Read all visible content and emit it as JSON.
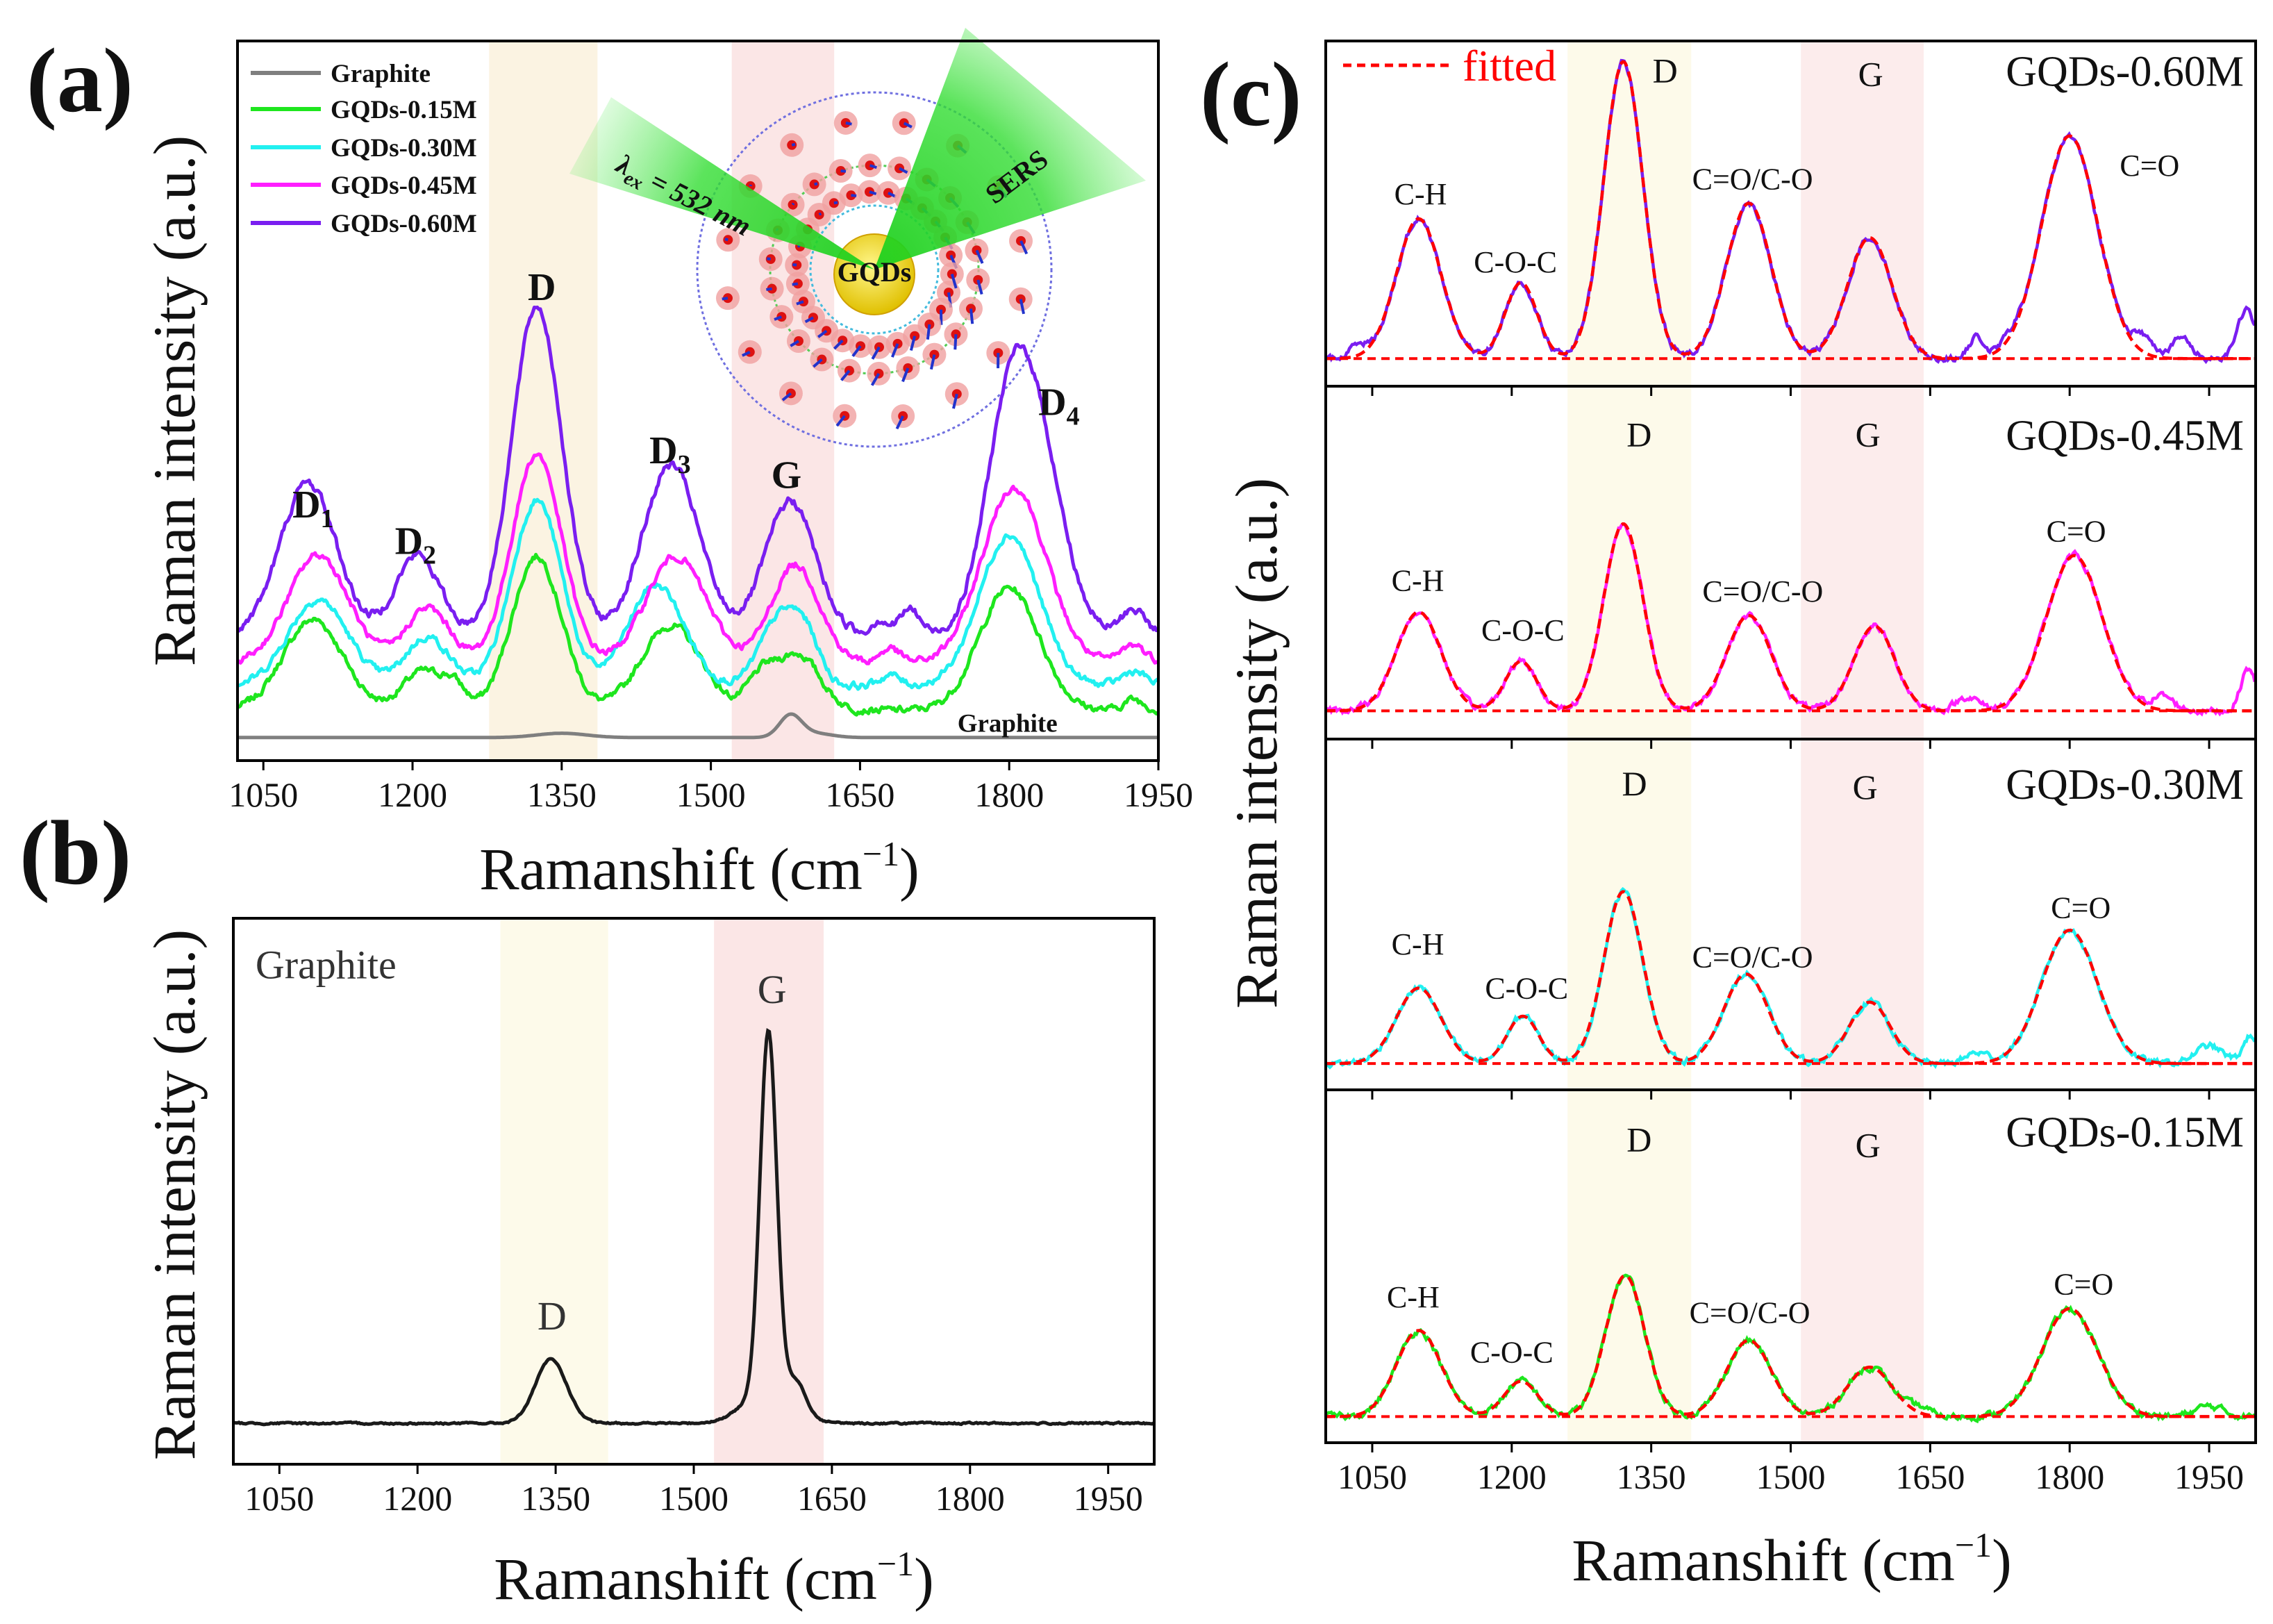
{
  "figure": {
    "panel_labels": {
      "a": "(a)",
      "b": "(b)",
      "c": "(c)"
    },
    "ylabel": "Raman intensity (a.u.)",
    "xlabel_main": "Ramanshift (cm",
    "xlabel_sup": "−1",
    "xlabel_end": ")"
  },
  "inset": {
    "lambda_symbol": "λ",
    "lambda_sub": "ex",
    "lambda_value": " = 532 nm",
    "sers": "SERS",
    "core": "GQDs"
  },
  "colors": {
    "graphite": "#7f7f7f",
    "gqds_015": "#1ee61e",
    "gqds_030": "#22f0f0",
    "gqds_045": "#ff1eff",
    "gqds_060": "#7a1ef0",
    "fit": "#ff0000",
    "d_band": "#fbf3e2",
    "g_band": "#fbe6e6",
    "d_band_c": "#fdfaea",
    "g_band_c": "#fcecec"
  },
  "chart_data": [
    {
      "id": "a",
      "type": "line",
      "title": "",
      "xlabel": "Ramanshift (cm−1)",
      "ylabel": "Raman intensity (a.u.)",
      "xlim": [
        1024,
        1950
      ],
      "ylim": [
        0,
        100
      ],
      "xticks": [
        1050,
        1200,
        1350,
        1500,
        1650,
        1800,
        1950
      ],
      "grid": false,
      "legend_position": "top-left",
      "bands": [
        {
          "label": "D",
          "range": [
            1277,
            1386
          ],
          "color_key": "d_band"
        },
        {
          "label": "G",
          "range": [
            1521,
            1624
          ],
          "color_key": "g_band"
        }
      ],
      "series": [
        {
          "name": "Graphite",
          "color_key": "graphite",
          "baseline": 3.2,
          "noise": 0,
          "peaks": [
            [
              1350,
              0.6,
              25
            ],
            [
              1580,
              3.0,
              11
            ],
            [
              1603,
              0.6,
              18
            ]
          ]
        },
        {
          "name": "GQDs-0.15M",
          "color_key": "gqds_015",
          "baseline": 7,
          "noise": 0.5,
          "peaks": [
            [
              1100,
              12.6,
              30
            ],
            [
              1210,
              5.4,
              20
            ],
            [
              1242,
              3,
              12
            ],
            [
              1325,
              21.4,
              25
            ],
            [
              1460,
              11.8,
              30
            ],
            [
              1550,
              4,
              14
            ],
            [
              1587,
              7.8,
              22
            ],
            [
              1800,
              17,
              30
            ],
            [
              1925,
              1.5,
              10
            ]
          ]
        },
        {
          "name": "GQDs-0.30M",
          "color_key": "gqds_030",
          "baseline": 10.4,
          "noise": 0.5,
          "peaks": [
            [
              1105,
              12,
              30
            ],
            [
              1215,
              6.8,
              22
            ],
            [
              1325,
              25.8,
              25
            ],
            [
              1445,
              14,
              28
            ],
            [
              1570,
              9.6,
              20
            ],
            [
              1597,
              5,
              14
            ],
            [
              1680,
              1.5,
              10
            ],
            [
              1800,
              21,
              30
            ],
            [
              1925,
              2,
              12
            ]
          ]
        },
        {
          "name": "GQDs-0.45M",
          "color_key": "gqds_045",
          "baseline": 13.6,
          "noise": 0.5,
          "peaks": [
            [
              1105,
              15,
              30
            ],
            [
              1215,
              7.6,
              22
            ],
            [
              1325,
              29,
              25
            ],
            [
              1465,
              14.8,
              30
            ],
            [
              1585,
              13.6,
              24
            ],
            [
              1680,
              2,
              10
            ],
            [
              1805,
              24.4,
              32
            ],
            [
              1925,
              2.5,
              12
            ]
          ]
        },
        {
          "name": "GQDs-0.60M",
          "color_key": "gqds_060",
          "baseline": 17.6,
          "noise": 0.6,
          "peaks": [
            [
              1095,
              21,
              28
            ],
            [
              1205,
              11,
              22
            ],
            [
              1325,
              45.5,
              25
            ],
            [
              1460,
              23.5,
              28
            ],
            [
              1580,
              18.5,
              25
            ],
            [
              1670,
              2,
              8
            ],
            [
              1700,
              3.5,
              10
            ],
            [
              1800,
              28,
              25
            ],
            [
              1832,
              20,
              26
            ],
            [
              1925,
              3.5,
              12
            ]
          ]
        }
      ],
      "annotations": [
        {
          "text": "D",
          "sub": "1",
          "x": 1100,
          "y": 33.8
        },
        {
          "text": "D",
          "sub": "2",
          "x": 1203,
          "y": 28.7
        },
        {
          "text": "D",
          "sub": "",
          "x": 1330,
          "y": 64
        },
        {
          "text": "D",
          "sub": "3",
          "x": 1459,
          "y": 41.3
        },
        {
          "text": "G",
          "sub": "",
          "x": 1576,
          "y": 37.9
        },
        {
          "text": "D",
          "sub": "4",
          "x": 1850,
          "y": 48
        }
      ],
      "series_label": {
        "text": "Graphite",
        "x": 1748,
        "y": 4
      }
    },
    {
      "id": "b",
      "type": "line",
      "title": "Graphite",
      "xlabel": "Ramanshift (cm−1)",
      "ylabel": "Raman intensity (a.u.)",
      "xlim": [
        1000,
        2000
      ],
      "ylim": [
        0,
        100
      ],
      "xticks": [
        1050,
        1200,
        1350,
        1500,
        1650,
        1800,
        1950
      ],
      "grid": false,
      "bands": [
        {
          "label": "D",
          "range": [
            1290,
            1407
          ],
          "color_key": "d_band_c"
        },
        {
          "label": "G",
          "range": [
            1522,
            1641
          ],
          "color_key": "g_band"
        }
      ],
      "series": [
        {
          "name": "Graphite",
          "color": "#1a1a1a",
          "baseline": 7.5,
          "noise": 0.15,
          "peaks": [
            [
              1345,
              11.7,
              17
            ],
            [
              1581,
              66,
              9
            ],
            [
              1581,
              6,
              26
            ],
            [
              1612,
              5,
              10
            ]
          ]
        }
      ],
      "annotations": [
        {
          "text": "Graphite",
          "sub": "",
          "x": 1024,
          "y": 89,
          "anchor": "start"
        },
        {
          "text": "D",
          "sub": "",
          "x": 1346,
          "y": 24.7
        },
        {
          "text": "G",
          "sub": "",
          "x": 1585,
          "y": 84.5
        }
      ]
    },
    {
      "id": "c",
      "type": "line",
      "xlabel": "Ramanshift (cm−1)",
      "ylabel": "Raman intensity (a.u.)",
      "xlim": [
        1000,
        2000
      ],
      "ylim": [
        0,
        100
      ],
      "xticks": [
        1050,
        1200,
        1350,
        1500,
        1650,
        1800,
        1950
      ],
      "grid": false,
      "legend": {
        "label": "fitted",
        "position": "top-left"
      },
      "bands": [
        {
          "label": "D",
          "range": [
            1260,
            1393
          ],
          "color_key": "d_band_c"
        },
        {
          "label": "G",
          "range": [
            1511,
            1643
          ],
          "color_key": "g_band_c"
        }
      ],
      "subpanels": [
        {
          "name": "GQDs-0.60M",
          "color_key": "gqds_060",
          "baseline": 8,
          "peaks": [
            [
              1100,
              40.5,
              24
            ],
            [
              1210,
              22,
              17
            ],
            [
              1320,
              86,
              21
            ],
            [
              1455,
              45,
              24
            ],
            [
              1585,
              35,
              24
            ],
            [
              1800,
              64.5,
              30
            ]
          ],
          "extras": [
            [
              1035,
              4,
              8
            ],
            [
              1700,
              6,
              8
            ],
            [
              1735,
              2,
              10
            ],
            [
              1880,
              5,
              12
            ],
            [
              1920,
              6,
              10
            ],
            [
              1990,
              14,
              10
            ]
          ],
          "annotations": [
            {
              "text": "D",
              "x": 1365,
              "y": 88
            },
            {
              "text": "G",
              "x": 1586,
              "y": 87
            },
            {
              "text": "C-H",
              "x": 1102,
              "y": 52.7
            },
            {
              "text": "C-O-C",
              "x": 1204,
              "y": 33
            },
            {
              "text": "C=O/C-O",
              "x": 1459,
              "y": 57
            },
            {
              "text": "C=O",
              "x": 1886,
              "y": 61
            }
          ],
          "name_y": 87
        },
        {
          "name": "GQDs-0.45M",
          "color_key": "gqds_045",
          "baseline": 8,
          "peaks": [
            [
              1100,
              28,
              24
            ],
            [
              1210,
              14,
              17
            ],
            [
              1320,
              53,
              21
            ],
            [
              1455,
              27,
              24
            ],
            [
              1590,
              24,
              22
            ],
            [
              1805,
              44,
              30
            ]
          ],
          "extras": [
            [
              1690,
              4,
              12
            ],
            [
              1900,
              4,
              12
            ],
            [
              1992,
              12,
              8
            ]
          ],
          "annotations": [
            {
              "text": "D",
              "x": 1337,
              "y": 83
            },
            {
              "text": "G",
              "x": 1583,
              "y": 83
            },
            {
              "text": "C-H",
              "x": 1099,
              "y": 42
            },
            {
              "text": "C-O-C",
              "x": 1212,
              "y": 28
            },
            {
              "text": "C=O/C-O",
              "x": 1470,
              "y": 39
            },
            {
              "text": "C=O",
              "x": 1807,
              "y": 56
            }
          ],
          "name_y": 82
        },
        {
          "name": "GQDs-0.30M",
          "color_key": "gqds_030",
          "baseline": 7.5,
          "peaks": [
            [
              1100,
              21.5,
              24
            ],
            [
              1212,
              13.5,
              17
            ],
            [
              1320,
              49,
              21
            ],
            [
              1452,
              25.5,
              24
            ],
            [
              1585,
              17.5,
              22
            ],
            [
              1800,
              38,
              30
            ]
          ],
          "extras": [
            [
              1700,
              3,
              12
            ],
            [
              1950,
              5,
              15
            ],
            [
              1995,
              8,
              8
            ]
          ],
          "annotations": [
            {
              "text": "D",
              "x": 1332,
              "y": 84
            },
            {
              "text": "G",
              "x": 1580,
              "y": 83
            },
            {
              "text": "C-H",
              "x": 1099,
              "y": 38.6
            },
            {
              "text": "C-O-C",
              "x": 1216,
              "y": 26
            },
            {
              "text": "C=O/C-O",
              "x": 1459,
              "y": 35
            },
            {
              "text": "C=O",
              "x": 1812,
              "y": 49
            }
          ],
          "name_y": 83
        },
        {
          "name": "GQDs-0.15M",
          "color_key": "gqds_015",
          "baseline": 7.4,
          "peaks": [
            [
              1100,
              24.4,
              24
            ],
            [
              1210,
              10,
              18
            ],
            [
              1322,
              40,
              21
            ],
            [
              1455,
              21.6,
              24
            ],
            [
              1585,
              14,
              24
            ],
            [
              1800,
              30.6,
              30
            ]
          ],
          "extras": [
            [
              1640,
              2,
              10
            ],
            [
              1950,
              3,
              15
            ]
          ],
          "annotations": [
            {
              "text": "D",
              "x": 1337,
              "y": 82.6
            },
            {
              "text": "G",
              "x": 1583,
              "y": 81
            },
            {
              "text": "C-H",
              "x": 1094,
              "y": 38.4
            },
            {
              "text": "C-O-C",
              "x": 1200,
              "y": 22.7
            },
            {
              "text": "C=O/C-O",
              "x": 1456,
              "y": 34
            },
            {
              "text": "C=O",
              "x": 1815,
              "y": 42
            }
          ],
          "name_y": 84
        }
      ]
    }
  ]
}
